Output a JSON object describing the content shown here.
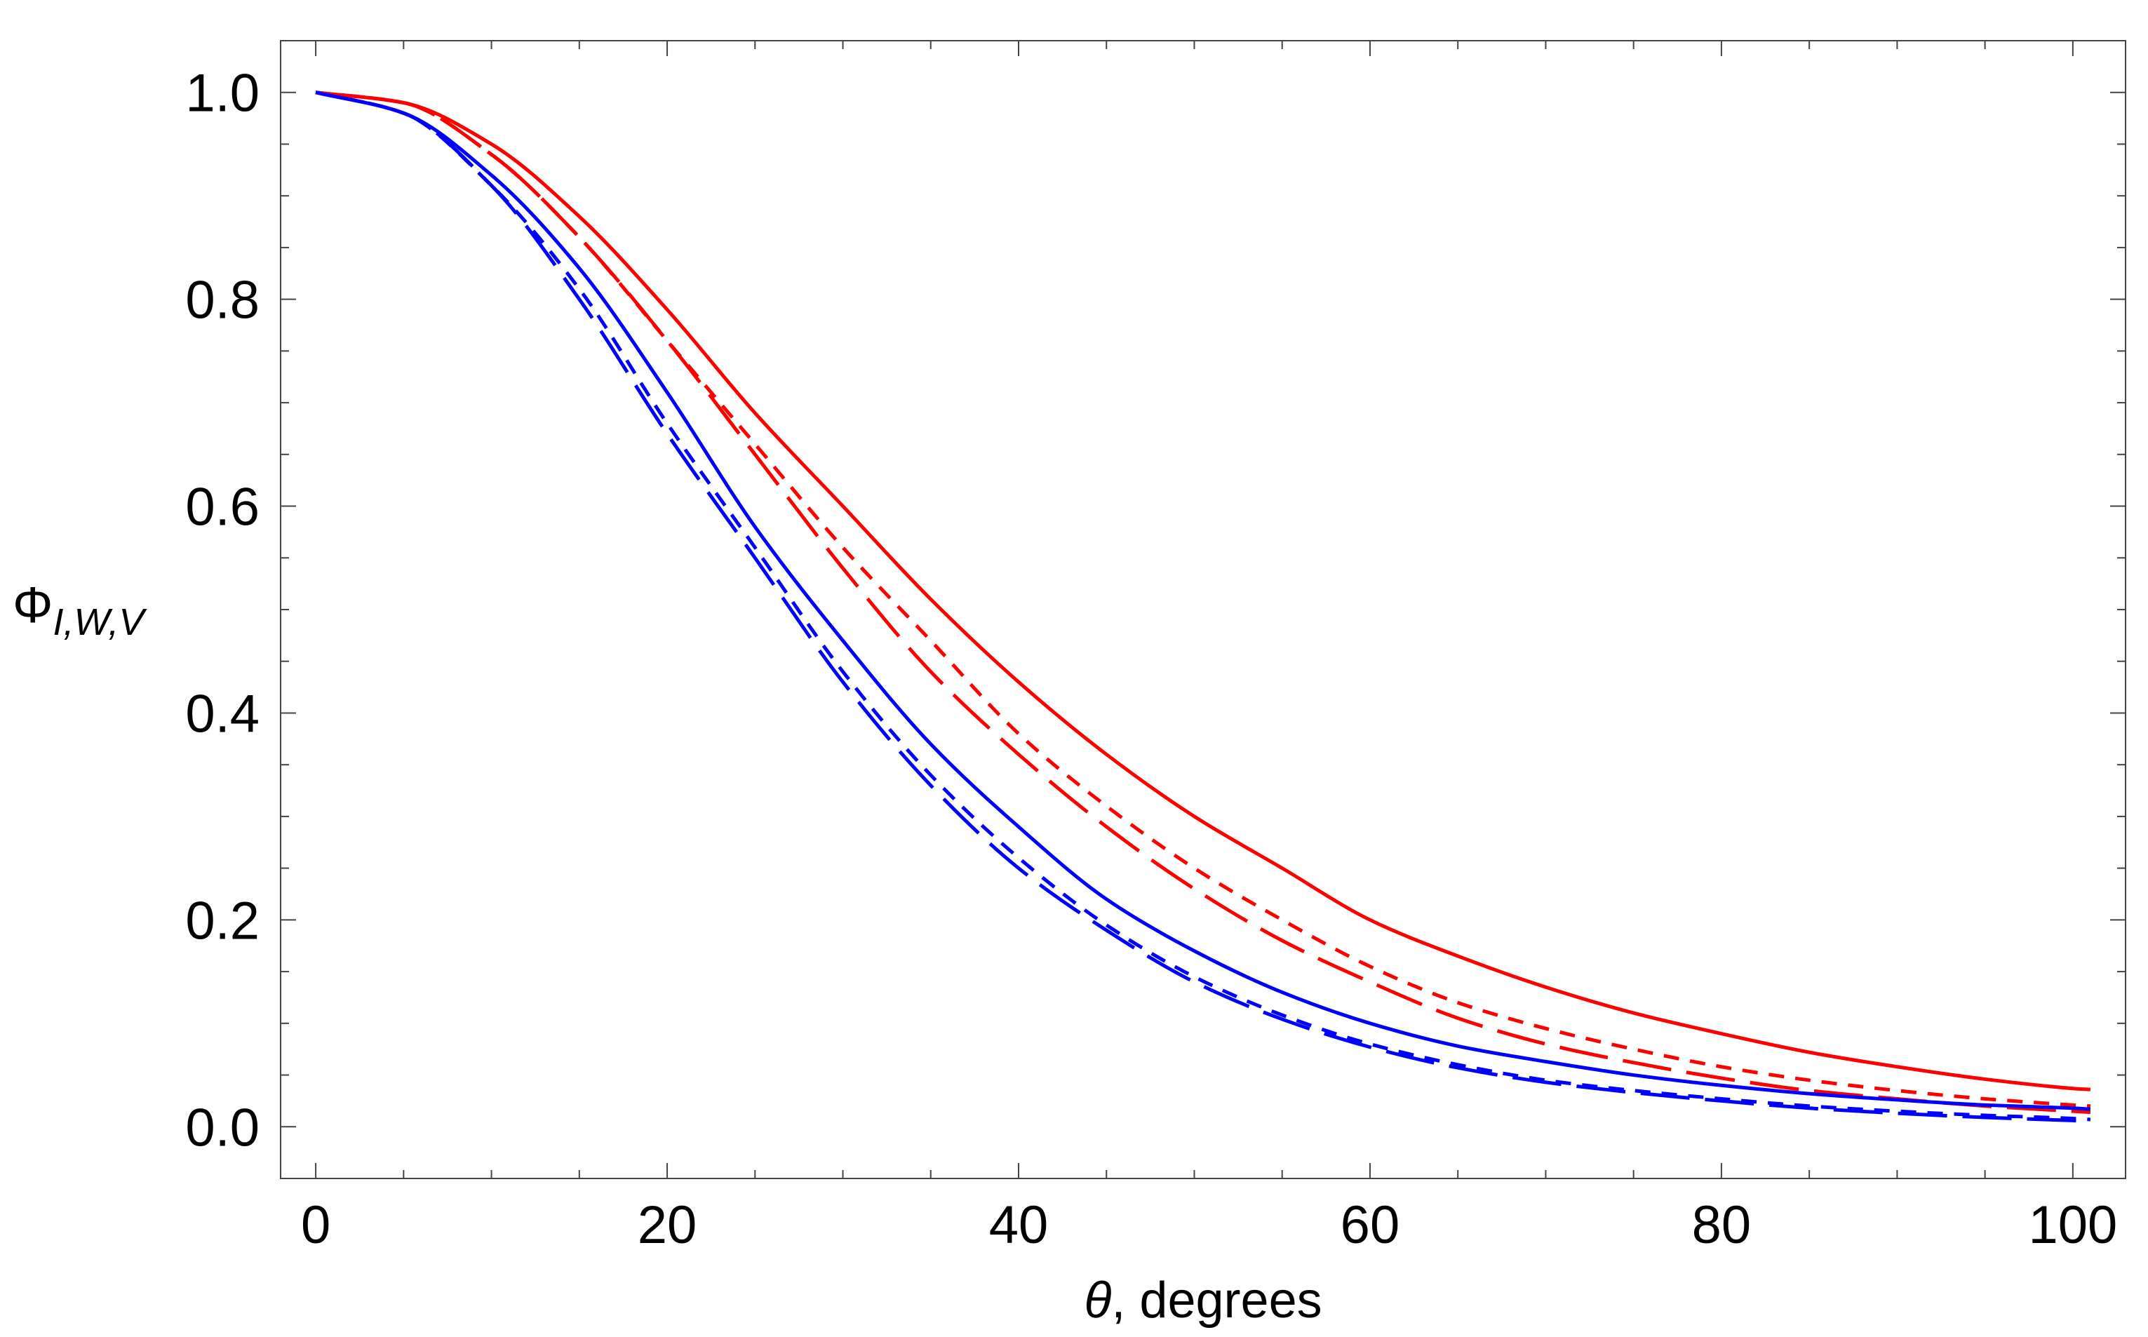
{
  "chart_data": {
    "type": "line",
    "title": "",
    "xlabel": {
      "symbol": "θ",
      "rest": ", degrees"
    },
    "ylabel": {
      "symbol": "Φ",
      "subscript": "I,W,V"
    },
    "xlim": [
      -2,
      103
    ],
    "ylim": [
      -0.05,
      1.05
    ],
    "xticks": [
      0,
      20,
      40,
      60,
      80,
      100
    ],
    "yticks": [
      0.0,
      0.2,
      0.4,
      0.6,
      0.8,
      1.0
    ],
    "xtick_labels": [
      "0",
      "20",
      "40",
      "60",
      "80",
      "100"
    ],
    "ytick_labels": [
      "0.0",
      "0.2",
      "0.4",
      "0.6",
      "0.8",
      "1.0"
    ],
    "grid": false,
    "x": [
      0,
      5,
      10,
      15,
      20,
      25,
      30,
      35,
      40,
      45,
      50,
      55,
      60,
      65,
      70,
      75,
      80,
      85,
      90,
      95,
      100,
      101
    ],
    "series": [
      {
        "name": "red-solid",
        "color": "#ff0000",
        "dash": "solid",
        "values": [
          1.0,
          0.99,
          0.95,
          0.88,
          0.79,
          0.69,
          0.6,
          0.51,
          0.43,
          0.36,
          0.3,
          0.25,
          0.2,
          0.165,
          0.135,
          0.11,
          0.09,
          0.072,
          0.058,
          0.046,
          0.037,
          0.036
        ]
      },
      {
        "name": "red-short-dash",
        "color": "#ff0000",
        "dash": "short",
        "values": [
          1.0,
          0.99,
          0.94,
          0.86,
          0.76,
          0.66,
          0.56,
          0.47,
          0.38,
          0.31,
          0.25,
          0.2,
          0.155,
          0.12,
          0.095,
          0.075,
          0.058,
          0.045,
          0.035,
          0.027,
          0.021,
          0.02
        ]
      },
      {
        "name": "red-long-dash",
        "color": "#ff0000",
        "dash": "long",
        "values": [
          1.0,
          0.99,
          0.94,
          0.86,
          0.76,
          0.65,
          0.54,
          0.44,
          0.36,
          0.29,
          0.23,
          0.18,
          0.14,
          0.105,
          0.08,
          0.062,
          0.047,
          0.035,
          0.027,
          0.02,
          0.015,
          0.014
        ]
      },
      {
        "name": "blue-solid",
        "color": "#0000ff",
        "dash": "solid",
        "values": [
          1.0,
          0.98,
          0.92,
          0.83,
          0.71,
          0.58,
          0.47,
          0.37,
          0.29,
          0.22,
          0.17,
          0.13,
          0.1,
          0.078,
          0.063,
          0.05,
          0.04,
          0.032,
          0.026,
          0.021,
          0.018,
          0.017
        ]
      },
      {
        "name": "blue-short-dash",
        "color": "#0000ff",
        "dash": "short",
        "values": [
          1.0,
          0.98,
          0.91,
          0.81,
          0.68,
          0.56,
          0.44,
          0.34,
          0.26,
          0.195,
          0.145,
          0.108,
          0.08,
          0.06,
          0.045,
          0.035,
          0.027,
          0.02,
          0.015,
          0.011,
          0.008,
          0.007
        ]
      },
      {
        "name": "blue-long-dash",
        "color": "#0000ff",
        "dash": "long",
        "values": [
          1.0,
          0.98,
          0.91,
          0.8,
          0.67,
          0.55,
          0.43,
          0.33,
          0.25,
          0.19,
          0.14,
          0.104,
          0.077,
          0.057,
          0.043,
          0.033,
          0.025,
          0.018,
          0.013,
          0.009,
          0.006,
          0.005
        ]
      }
    ]
  }
}
